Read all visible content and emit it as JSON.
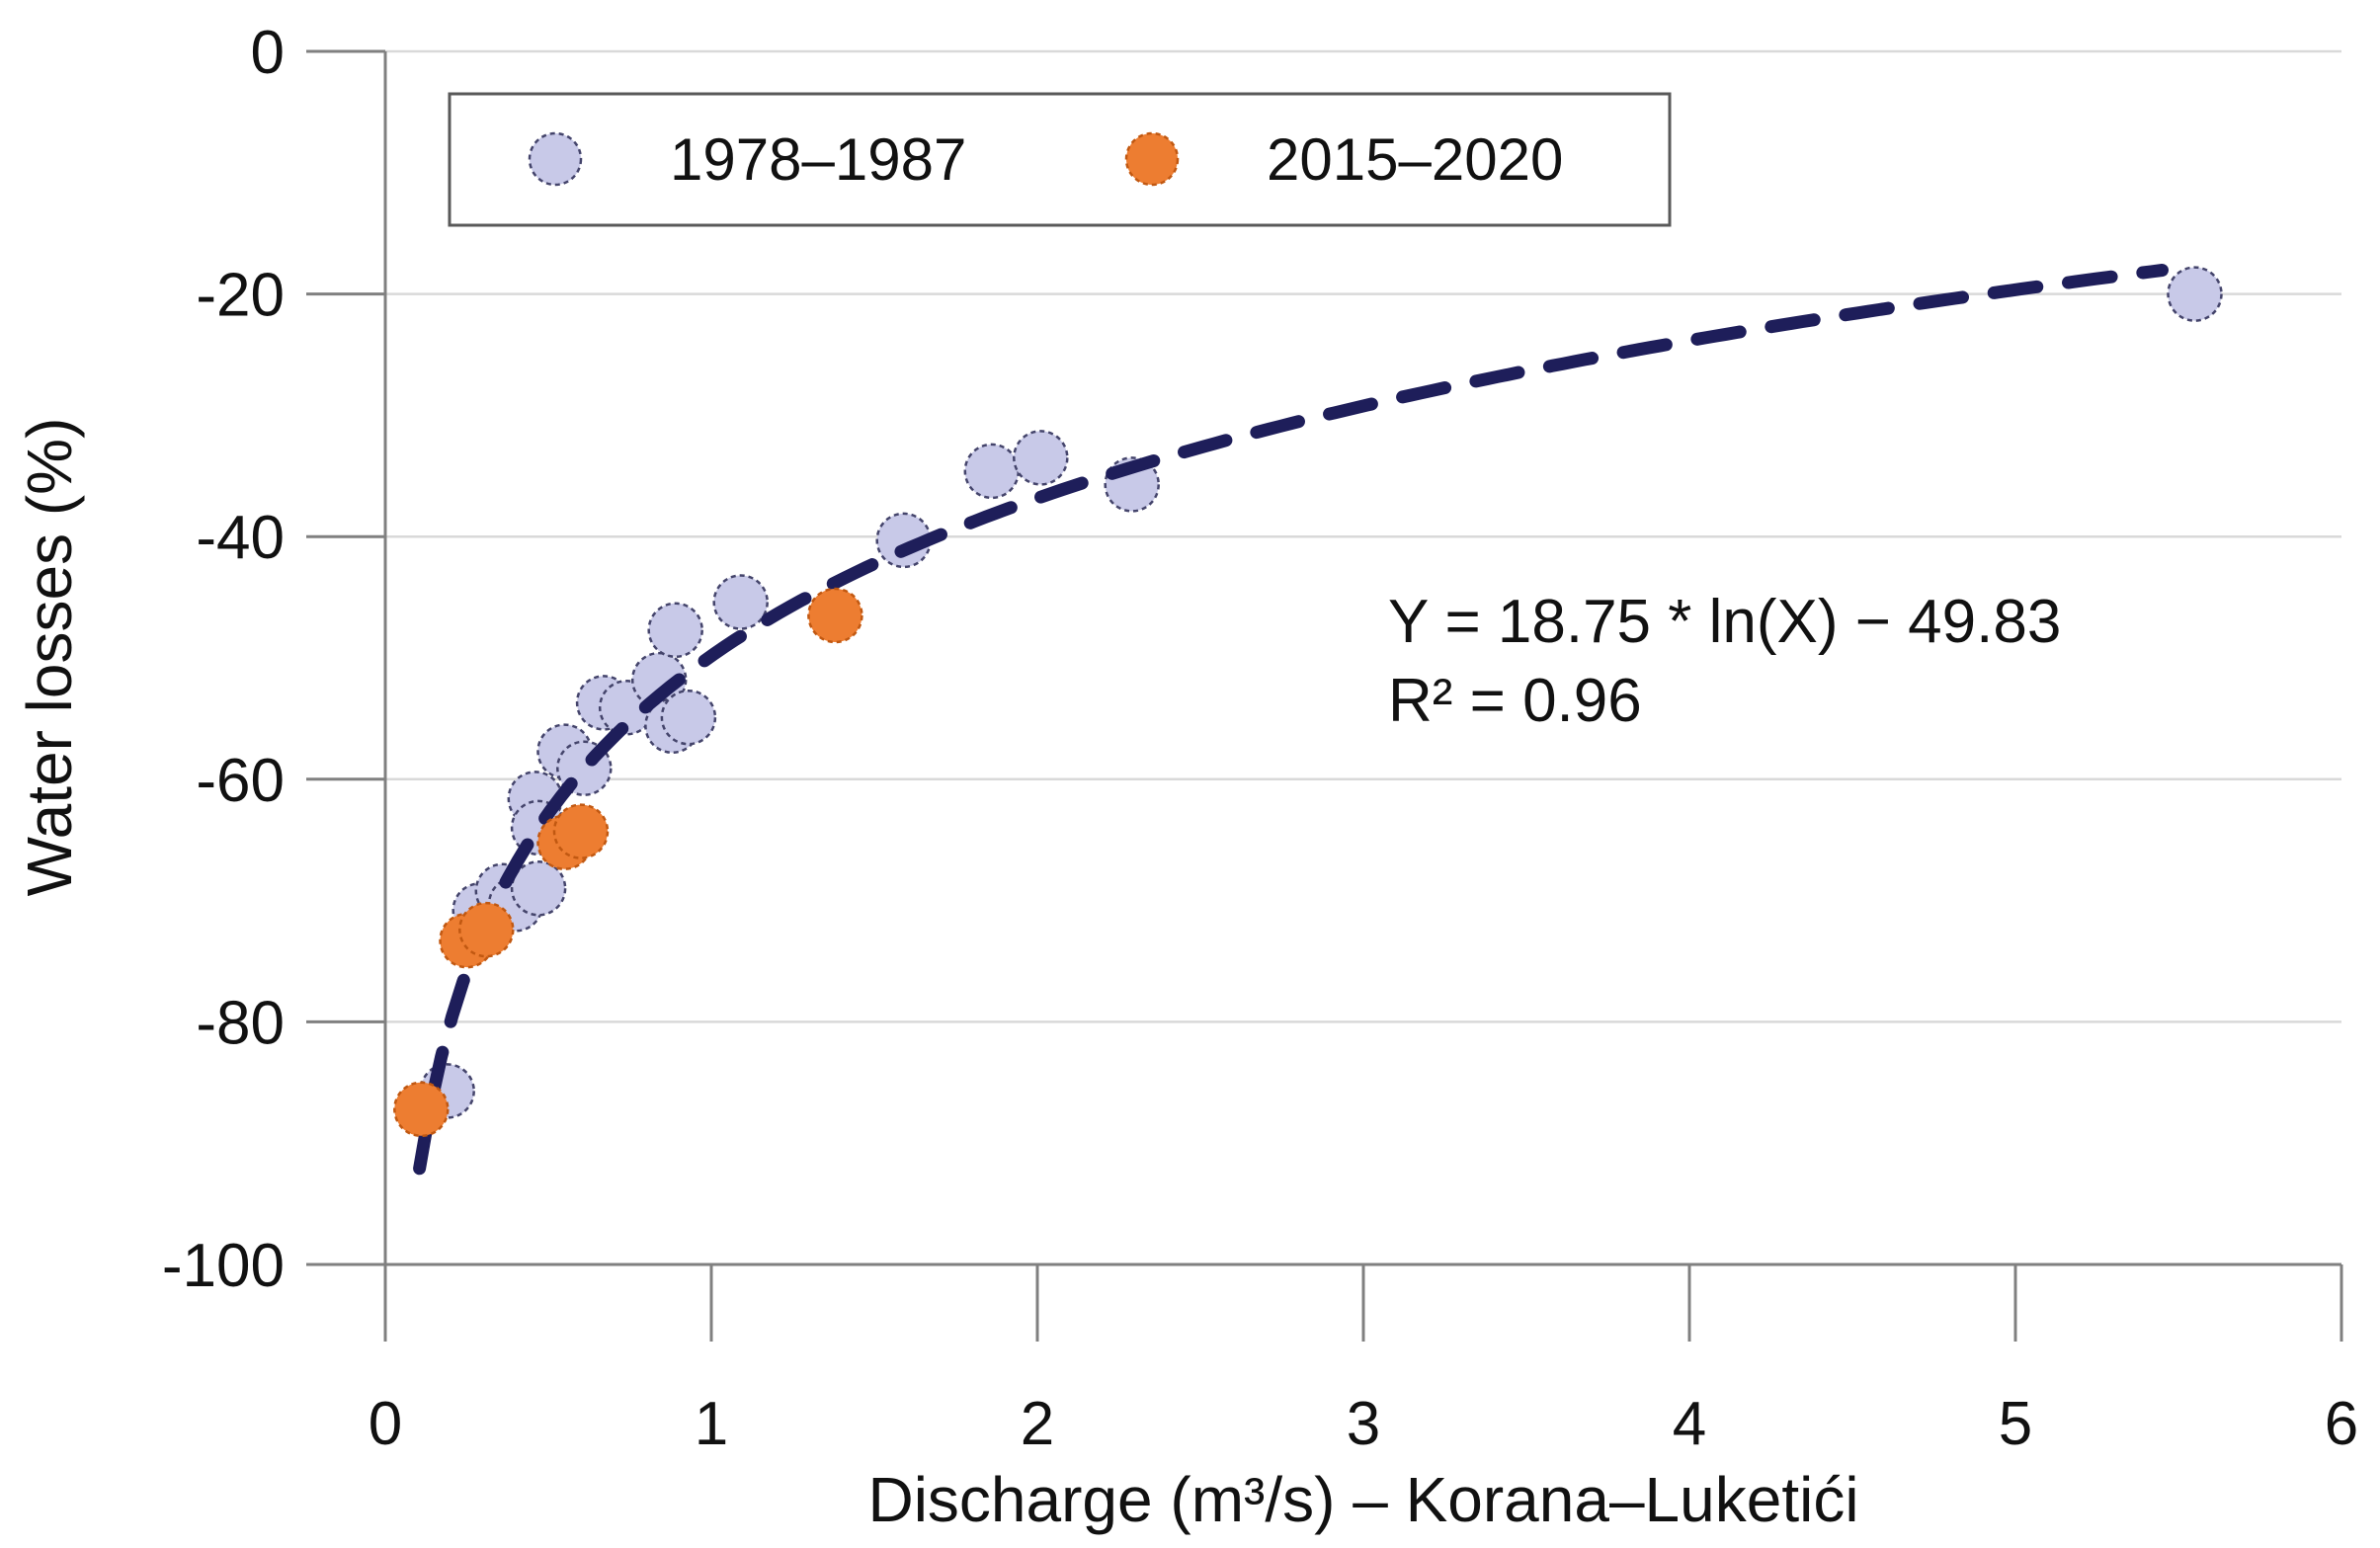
{
  "figure": {
    "background_color": "#ffffff",
    "axis_line_color": "#808080",
    "gridline_color": "#d9d9d9",
    "legend_border_color": "#595959",
    "annotation_color": "#1f3170"
  },
  "chart_data": {
    "type": "scatter",
    "title": "",
    "xlabel": "Discharge (m³/s) – Korana–Luketići",
    "ylabel": "Water losses (%)",
    "xlim": [
      0,
      6
    ],
    "ylim": [
      -100,
      0
    ],
    "x_ticks": [
      0,
      1,
      2,
      3,
      4,
      5,
      6
    ],
    "y_ticks": [
      0,
      -20,
      -40,
      -60,
      -80,
      -100
    ],
    "grid": "horizontal",
    "legend_position": "top-left",
    "series": [
      {
        "name": "1978–1987",
        "marker_fill": "#c8c9e8",
        "marker_stroke": "#44446b",
        "points": [
          [
            0.19,
            -85.7
          ],
          [
            0.29,
            -70.8
          ],
          [
            0.36,
            -69.2
          ],
          [
            0.4,
            -70.3
          ],
          [
            0.46,
            -61.6
          ],
          [
            0.47,
            -64.0
          ],
          [
            0.47,
            -69.0
          ],
          [
            0.55,
            -57.7
          ],
          [
            0.61,
            -59.1
          ],
          [
            0.67,
            -53.7
          ],
          [
            0.74,
            -54.1
          ],
          [
            0.84,
            -51.8
          ],
          [
            0.88,
            -55.6
          ],
          [
            0.93,
            -54.9
          ],
          [
            0.89,
            -47.7
          ],
          [
            1.09,
            -45.4
          ],
          [
            1.59,
            -40.3
          ],
          [
            1.86,
            -34.6
          ],
          [
            2.01,
            -33.5
          ],
          [
            2.29,
            -35.7
          ],
          [
            5.55,
            -20.0
          ]
        ]
      },
      {
        "name": "2015–2020",
        "marker_fill": "#ed7d31",
        "marker_stroke": "#c15811",
        "points": [
          [
            0.11,
            -87.2
          ],
          [
            0.25,
            -73.3
          ],
          [
            0.31,
            -72.4
          ],
          [
            0.55,
            -65.2
          ],
          [
            0.6,
            -64.3
          ],
          [
            1.38,
            -46.5
          ]
        ]
      }
    ],
    "trendline": {
      "type": "logarithmic",
      "a": 18.75,
      "b": -49.83,
      "x_start": 0.105,
      "x_end": 5.45,
      "color": "#1e1e5a",
      "equation": "Y = 18.75 * ln(X) − 49.83",
      "r_squared": "R² = 0.96"
    }
  }
}
